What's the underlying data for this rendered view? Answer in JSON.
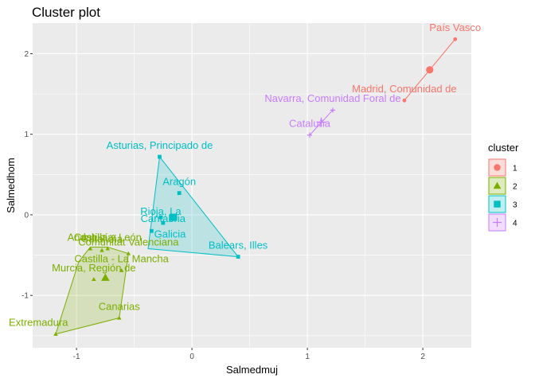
{
  "chart_data": {
    "type": "scatter",
    "title": "Cluster plot",
    "xlabel": "Salmedmuj",
    "ylabel": "Salmedhom",
    "xlim": [
      -1.38,
      2.42
    ],
    "ylim": [
      -1.65,
      2.38
    ],
    "x_ticks": [
      -1,
      0,
      1,
      2
    ],
    "y_ticks": [
      -1,
      0,
      1,
      2
    ],
    "legend": {
      "title": "cluster",
      "position": "right",
      "entries": [
        "1",
        "2",
        "3",
        "4"
      ]
    },
    "clusters": [
      {
        "id": "1",
        "color": "#F8766D",
        "shape": "circle",
        "center": [
          2.06,
          1.8
        ],
        "hull": [
          [
            2.28,
            2.18
          ],
          [
            1.84,
            1.42
          ]
        ],
        "points": [
          {
            "label": "País Vasco",
            "x": 2.28,
            "y": 2.18,
            "lx": 2.28,
            "ly": 2.28
          },
          {
            "label": "Madrid, Comunidad de",
            "x": 1.84,
            "y": 1.42,
            "lx": 1.84,
            "ly": 1.52
          }
        ]
      },
      {
        "id": "2",
        "color": "#7CAE00",
        "shape": "triangle",
        "center": [
          -0.75,
          -0.78
        ],
        "hull": [
          [
            -1.18,
            -1.48
          ],
          [
            -0.63,
            -1.28
          ],
          [
            -0.55,
            -0.48
          ],
          [
            -0.73,
            -0.4
          ],
          [
            -0.88,
            -0.4
          ],
          [
            -0.98,
            -0.58
          ]
        ],
        "points": [
          {
            "label": "Extremadura",
            "x": -1.18,
            "y": -1.48,
            "lx": -1.33,
            "ly": -1.38
          },
          {
            "label": "Canarias",
            "x": -0.63,
            "y": -1.28,
            "lx": -0.63,
            "ly": -1.18
          },
          {
            "label": "Murcia, Región de",
            "x": -0.85,
            "y": -0.8,
            "lx": -0.85,
            "ly": -0.7
          },
          {
            "label": "Castilla - La Mancha",
            "x": -0.61,
            "y": -0.69,
            "lx": -0.61,
            "ly": -0.59
          },
          {
            "label": "Comunitat Valenciana",
            "x": -0.55,
            "y": -0.48,
            "lx": -0.55,
            "ly": -0.38
          },
          {
            "label": "Castilla y León",
            "x": -0.73,
            "y": -0.42,
            "lx": -0.73,
            "ly": -0.32
          },
          {
            "label": "Andalucía",
            "x": -0.88,
            "y": -0.42,
            "lx": -0.88,
            "ly": -0.32
          },
          {
            "label": "Cataluña",
            "x": -0.78,
            "y": -0.44,
            "lx": -0.78,
            "ly": -0.34
          }
        ]
      },
      {
        "id": "3",
        "color": "#00BFC4",
        "shape": "square",
        "center": [
          -0.16,
          -0.03
        ],
        "hull": [
          [
            -0.28,
            0.72
          ],
          [
            0.4,
            -0.52
          ],
          [
            -0.38,
            -0.42
          ]
        ],
        "points": [
          {
            "label": "Asturias, Principado de",
            "x": -0.28,
            "y": 0.72,
            "lx": -0.28,
            "ly": 0.82
          },
          {
            "label": "Aragón",
            "x": -0.11,
            "y": 0.27,
            "lx": -0.11,
            "ly": 0.37
          },
          {
            "label": "Rioja, La",
            "x": -0.27,
            "y": -0.03,
            "lx": -0.27,
            "ly": 0.0
          },
          {
            "label": "Cantabria",
            "x": -0.25,
            "y": -0.1,
            "lx": -0.25,
            "ly": -0.09
          },
          {
            "label": "Galicia",
            "x": -0.35,
            "y": -0.2,
            "lx": -0.19,
            "ly": -0.28
          },
          {
            "label": "Balears, Illes",
            "x": 0.4,
            "y": -0.52,
            "lx": 0.4,
            "ly": -0.42
          }
        ]
      },
      {
        "id": "4",
        "color": "#C77CFF",
        "shape": "plus",
        "center": [
          1.12,
          1.15
        ],
        "hull": [
          [
            1.22,
            1.3
          ],
          [
            1.02,
            0.99
          ]
        ],
        "points": [
          {
            "label": "Navarra, Comunidad Foral de",
            "x": 1.22,
            "y": 1.3,
            "lx": 1.22,
            "ly": 1.4
          },
          {
            "label": "Cataluña",
            "x": 1.02,
            "y": 0.99,
            "lx": 1.02,
            "ly": 1.09
          }
        ]
      }
    ]
  }
}
